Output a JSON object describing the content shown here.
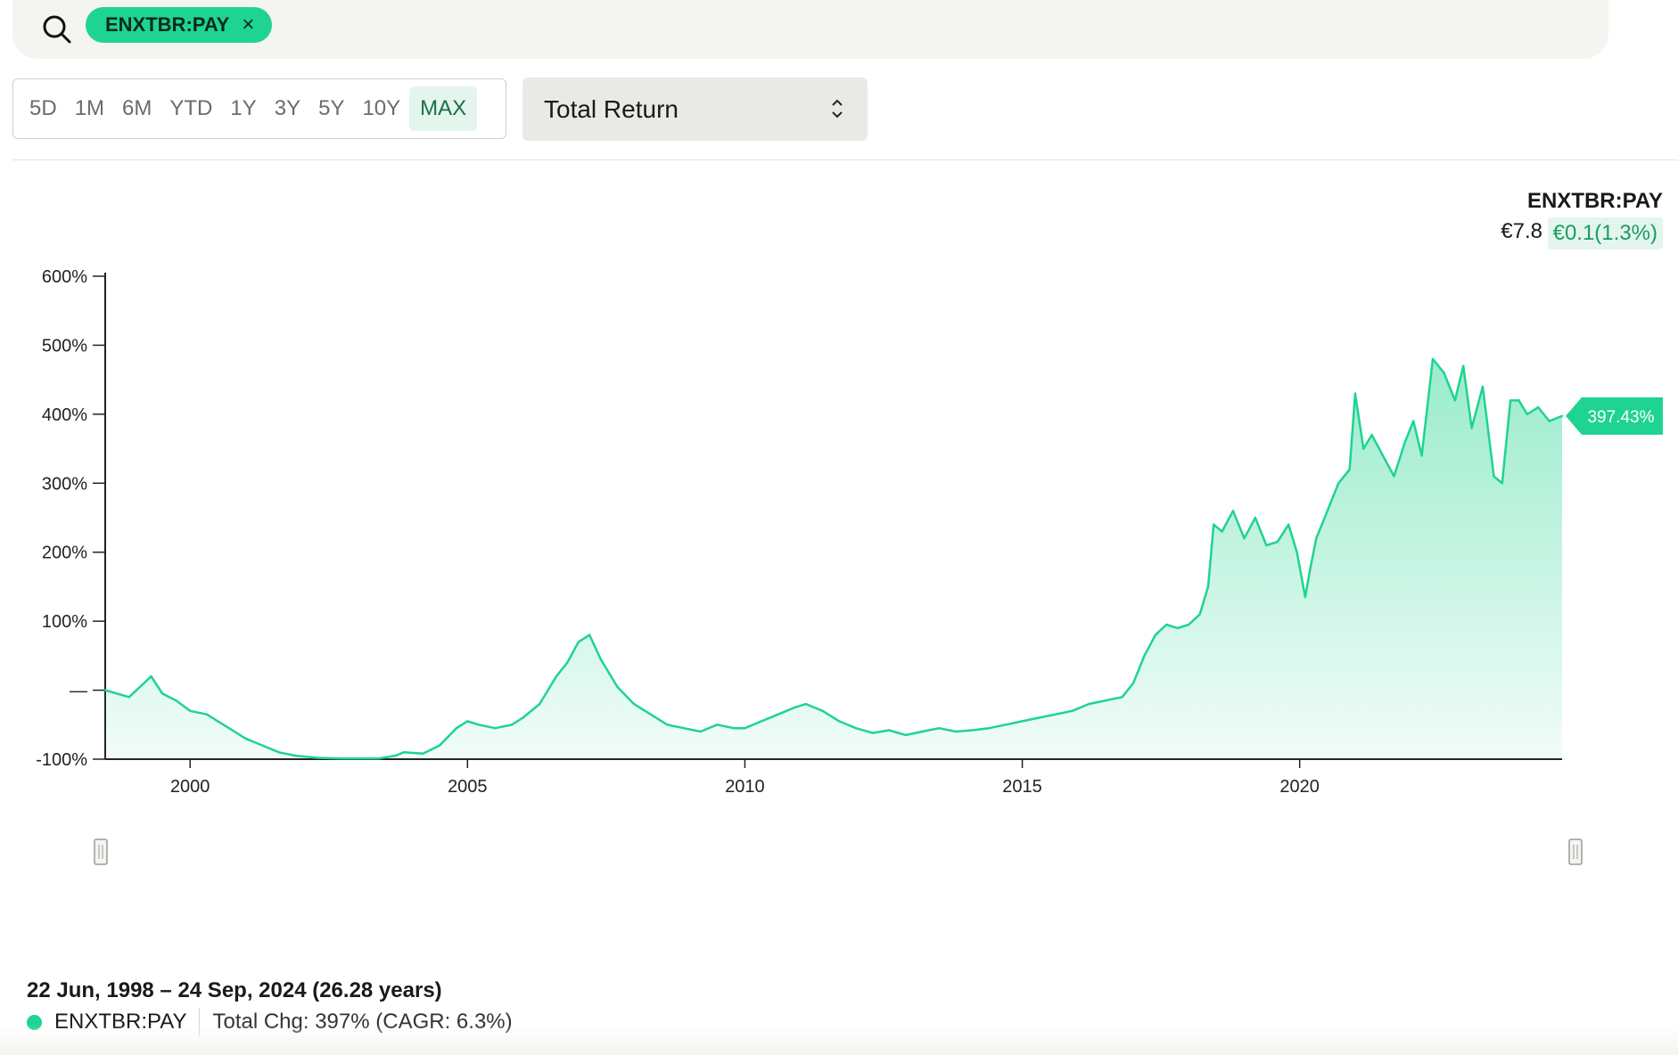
{
  "search": {
    "chip_label": "ENXTBR:PAY",
    "chip_close": "×"
  },
  "ranges": [
    "5D",
    "1M",
    "6M",
    "YTD",
    "1Y",
    "3Y",
    "5Y",
    "10Y",
    "MAX"
  ],
  "active_range": "MAX",
  "metric_select": {
    "value": "Total Return"
  },
  "ticker_header": {
    "symbol": "ENXTBR:PAY",
    "price": "€7.8",
    "change": "€0.1(1.3%)"
  },
  "summary": {
    "date_range": "22 Jun, 1998 – 24 Sep, 2024 (26.28 years)",
    "series_name": "ENXTBR:PAY",
    "total_change": "Total Chg: 397% (CAGR: 6.3%)"
  },
  "colors": {
    "accent": "#1ed490",
    "accent_dark": "#1a9a62",
    "badge_bg": "#e3f5ec"
  },
  "chart_data": {
    "type": "area",
    "series": [
      {
        "name": "ENXTBR:PAY",
        "x": [
          1998.47,
          1998.9,
          1999.3,
          1999.5,
          1999.75,
          2000.0,
          2000.3,
          2000.5,
          2000.8,
          2001.0,
          2001.3,
          2001.6,
          2001.9,
          2002.3,
          2002.7,
          2003.0,
          2003.4,
          2003.7,
          2003.85,
          2004.2,
          2004.5,
          2004.8,
          2005.0,
          2005.2,
          2005.5,
          2005.8,
          2006.0,
          2006.3,
          2006.6,
          2006.8,
          2007.0,
          2007.2,
          2007.4,
          2007.7,
          2008.0,
          2008.3,
          2008.6,
          2008.9,
          2009.2,
          2009.5,
          2009.8,
          2010.0,
          2010.3,
          2010.6,
          2010.9,
          2011.1,
          2011.4,
          2011.7,
          2012.0,
          2012.3,
          2012.6,
          2012.9,
          2013.2,
          2013.5,
          2013.8,
          2014.1,
          2014.4,
          2014.7,
          2015.0,
          2015.3,
          2015.6,
          2015.9,
          2016.2,
          2016.5,
          2016.8,
          2017.0,
          2017.2,
          2017.4,
          2017.6,
          2017.8,
          2018.0,
          2018.2,
          2018.35,
          2018.45,
          2018.6,
          2018.8,
          2019.0,
          2019.2,
          2019.4,
          2019.6,
          2019.8,
          2019.95,
          2020.1,
          2020.2,
          2020.3,
          2020.5,
          2020.7,
          2020.9,
          2021.0,
          2021.15,
          2021.3,
          2021.5,
          2021.7,
          2021.9,
          2022.05,
          2022.2,
          2022.4,
          2022.6,
          2022.8,
          2022.95,
          2023.1,
          2023.3,
          2023.5,
          2023.65,
          2023.8,
          2023.95,
          2024.1,
          2024.3,
          2024.5,
          2024.73
        ],
        "values": [
          0,
          -10,
          20,
          -5,
          -15,
          -30,
          -35,
          -45,
          -60,
          -70,
          -80,
          -90,
          -95,
          -98,
          -99,
          -99,
          -99,
          -95,
          -90,
          -92,
          -80,
          -55,
          -45,
          -50,
          -55,
          -50,
          -40,
          -20,
          20,
          40,
          70,
          80,
          45,
          5,
          -20,
          -35,
          -50,
          -55,
          -60,
          -50,
          -55,
          -55,
          -45,
          -35,
          -25,
          -20,
          -30,
          -45,
          -55,
          -62,
          -58,
          -65,
          -60,
          -55,
          -60,
          -58,
          -55,
          -50,
          -45,
          -40,
          -35,
          -30,
          -20,
          -15,
          -10,
          10,
          50,
          80,
          95,
          90,
          95,
          110,
          150,
          240,
          230,
          260,
          220,
          250,
          210,
          215,
          240,
          200,
          135,
          180,
          220,
          260,
          300,
          320,
          430,
          350,
          370,
          340,
          310,
          360,
          390,
          340,
          480,
          460,
          420,
          470,
          380,
          440,
          310,
          300,
          420,
          420,
          400,
          410,
          390,
          397.43
        ]
      }
    ],
    "ylabel": "",
    "yticks": [
      -100,
      0,
      100,
      200,
      300,
      400,
      500,
      600
    ],
    "ytick_labels": [
      "-100%",
      "—",
      "100%",
      "200%",
      "300%",
      "400%",
      "500%",
      "600%"
    ],
    "ylim": [
      -100,
      600
    ],
    "xticks": [
      2000,
      2005,
      2010,
      2015,
      2020
    ],
    "xtick_labels": [
      "2000",
      "2005",
      "2010",
      "2015",
      "2020"
    ],
    "xlim": [
      1998.47,
      2024.73
    ],
    "last_value_label": "397.43%",
    "grid": false,
    "legend": "bottom-left"
  }
}
